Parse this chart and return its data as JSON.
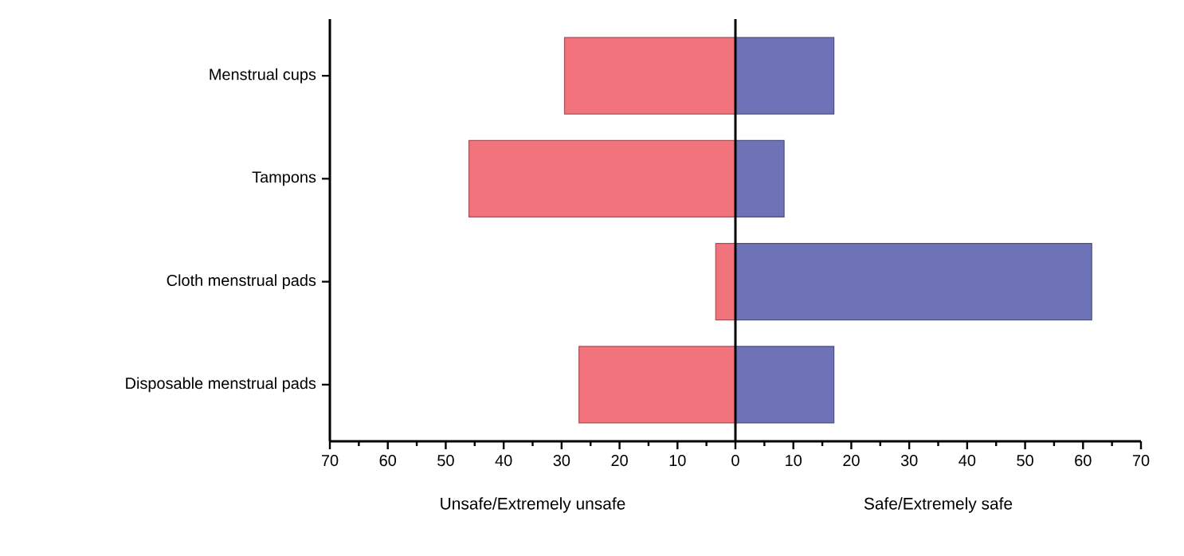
{
  "chart_data": {
    "type": "bar",
    "orientation": "horizontal",
    "stacked": true,
    "categories": [
      "Menstrual cups",
      "Tampons",
      "Cloth menstrual pads",
      "Disposable menstrual pads"
    ],
    "series": [
      {
        "color": "#f2737b",
        "values": [
          -29.5,
          -46,
          -3.4,
          -27
        ]
      },
      {
        "color": "#6e72b6",
        "values": [
          17,
          8.4,
          61.5,
          17
        ]
      }
    ],
    "xlim": [
      -70,
      70
    ],
    "xticks": [
      {
        "value": -70,
        "label": "70"
      },
      {
        "value": -60,
        "label": "60"
      },
      {
        "value": -50,
        "label": "50"
      },
      {
        "value": -40,
        "label": "40"
      },
      {
        "value": -30,
        "label": "30"
      },
      {
        "value": -20,
        "label": "20"
      },
      {
        "value": -10,
        "label": "10"
      },
      0,
      10,
      20,
      30,
      40,
      50,
      60,
      70
    ],
    "ref_lines": [
      {
        "axis": "x",
        "value": 0
      }
    ],
    "annotations": [
      "Unsafe/Extremely unsafe",
      "Safe/Extremely safe"
    ]
  }
}
